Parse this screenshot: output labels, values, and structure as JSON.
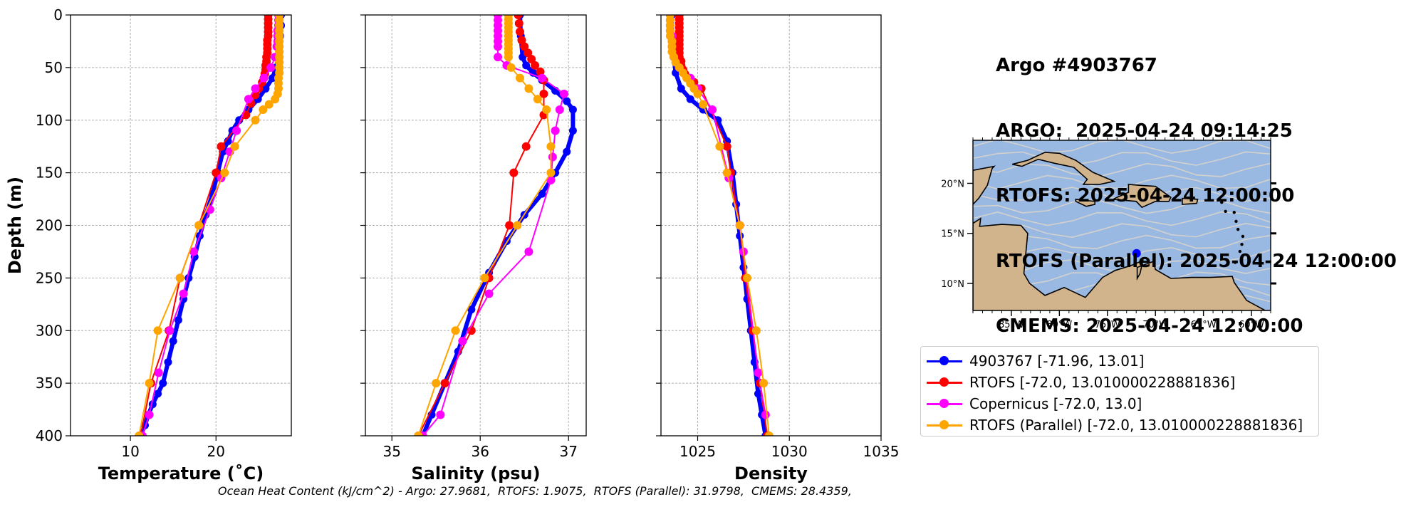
{
  "title_lines": [
    "Argo #4903767",
    "ARGO:  2025-04-24 09:14:25",
    "RTOFS: 2025-04-24 12:00:00",
    "RTOFS (Parallel): 2025-04-24 12:00:00",
    "CMEMS: 2025-04-24 12:00:00"
  ],
  "footer_note": "Ocean Heat Content (kJ/cm^2) - Argo: 27.9681,  RTOFS: 1.9075,  RTOFS (Parallel): 31.9798,  CMEMS: 28.4359,",
  "colors": {
    "argo": "#0000ff",
    "rtofs": "#ff0000",
    "copernicus": "#ff00ff",
    "rtofs_parallel": "#ffa500",
    "ocean": "#9ab9e2",
    "land": "#d2b48c",
    "streamlines": "#d9d4cc"
  },
  "legend": [
    {
      "label": "4903767 [-71.96, 13.01]",
      "color": "#0000ff"
    },
    {
      "label": "RTOFS [-72.0, 13.010000228881836]",
      "color": "#ff0000"
    },
    {
      "label": "Copernicus [-72.0, 13.0]",
      "color": "#ff00ff"
    },
    {
      "label": "RTOFS (Parallel) [-72.0, 13.010000228881836]",
      "color": "#ffa500"
    }
  ],
  "chart_data": [
    {
      "type": "line",
      "xlabel": "Temperature (˚C)",
      "ylabel": "Depth (m)",
      "xlim": [
        3,
        28.8
      ],
      "ylim": [
        400,
        0
      ],
      "xticks": [
        10,
        20
      ],
      "yticks": [
        0,
        50,
        100,
        150,
        200,
        250,
        300,
        350,
        400
      ],
      "grid": true,
      "series": [
        {
          "key": "argo",
          "color": "#0000ff",
          "width": 6,
          "marker": 0,
          "x": [
            27.6,
            27.6,
            27.5,
            27.4,
            27.3,
            27.0,
            26.6,
            25.8,
            24.9,
            23.8,
            22.7,
            21.9,
            21.4,
            20.8,
            20.2,
            19.6,
            18.8,
            18.1,
            17.5,
            16.8,
            16.2,
            15.6,
            15.0,
            14.4,
            13.8,
            13.2,
            12.6,
            12.1,
            11.7,
            11.2
          ],
          "y": [
            0,
            10,
            20,
            30,
            40,
            50,
            60,
            70,
            80,
            90,
            100,
            110,
            120,
            130,
            150,
            170,
            190,
            210,
            230,
            250,
            270,
            290,
            310,
            330,
            350,
            360,
            370,
            380,
            390,
            400
          ]
        },
        {
          "key": "rtofs",
          "color": "#ff0000",
          "width": 2,
          "marker": 6,
          "x": [
            26.1,
            26.1,
            26.1,
            26.1,
            26.1,
            26.1,
            26.0,
            26.0,
            26.0,
            26.0,
            25.9,
            25.9,
            25.8,
            25.8,
            25.7,
            25.6,
            25.4,
            25.0,
            24.6,
            24.1,
            23.5,
            20.6,
            20.0,
            18.0,
            15.8,
            14.5,
            12.4,
            11.2
          ],
          "y": [
            0,
            4,
            8,
            12,
            16,
            20,
            24,
            28,
            32,
            36,
            40,
            44,
            48,
            52,
            56,
            60,
            64,
            70,
            76,
            84,
            95,
            125,
            150,
            200,
            250,
            300,
            350,
            400
          ]
        },
        {
          "key": "copernicus",
          "color": "#ff00ff",
          "width": 2,
          "marker": 6,
          "x": [
            27.3,
            27.3,
            27.3,
            27.2,
            27.2,
            27.2,
            27.1,
            26.9,
            26.4,
            25.6,
            24.6,
            23.8,
            22.4,
            21.6,
            20.6,
            19.3,
            17.4,
            16.2,
            14.6,
            13.3,
            12.2,
            11.4
          ],
          "y": [
            0,
            5,
            10,
            15,
            20,
            25,
            30,
            40,
            50,
            60,
            70,
            80,
            110,
            130,
            155,
            185,
            225,
            265,
            300,
            340,
            380,
            400
          ]
        },
        {
          "key": "rtofs_parallel",
          "color": "#ffa500",
          "width": 2,
          "marker": 6,
          "x": [
            27.4,
            27.4,
            27.4,
            27.4,
            27.4,
            27.4,
            27.4,
            27.4,
            27.4,
            27.4,
            27.4,
            27.4,
            27.3,
            27.3,
            27.3,
            27.2,
            26.9,
            26.2,
            25.5,
            24.6,
            22.2,
            21.0,
            18.0,
            15.8,
            13.2,
            12.2,
            11.0
          ],
          "y": [
            0,
            5,
            10,
            15,
            20,
            25,
            30,
            35,
            40,
            45,
            50,
            55,
            60,
            65,
            70,
            75,
            80,
            85,
            90,
            100,
            125,
            150,
            200,
            250,
            300,
            350,
            400
          ]
        }
      ]
    },
    {
      "type": "line",
      "xlabel": "Salinity (psu)",
      "ylabel": "",
      "xlim": [
        34.7,
        37.2
      ],
      "ylim": [
        400,
        0
      ],
      "xticks": [
        35,
        36,
        37
      ],
      "yticks": [
        0,
        50,
        100,
        150,
        200,
        250,
        300,
        350,
        400
      ],
      "grid": true,
      "series": [
        {
          "key": "argo",
          "color": "#0000ff",
          "width": 6,
          "marker": 0,
          "x": [
            36.45,
            36.46,
            36.48,
            36.52,
            36.6,
            36.7,
            36.85,
            36.98,
            37.05,
            37.05,
            36.98,
            36.85,
            36.7,
            36.5,
            36.3,
            36.1,
            35.9,
            35.75,
            35.6,
            35.45,
            35.35
          ],
          "y": [
            0,
            20,
            40,
            48,
            55,
            62,
            72,
            82,
            90,
            110,
            130,
            150,
            170,
            190,
            215,
            245,
            280,
            320,
            350,
            380,
            400
          ]
        },
        {
          "key": "rtofs",
          "color": "#ff0000",
          "width": 2,
          "marker": 6,
          "x": [
            36.43,
            36.44,
            36.45,
            36.47,
            36.5,
            36.54,
            36.58,
            36.62,
            36.68,
            36.72,
            36.72,
            36.72,
            36.52,
            36.38,
            36.33,
            36.1,
            35.9,
            35.6,
            35.3
          ],
          "y": [
            0,
            8,
            16,
            24,
            30,
            36,
            42,
            48,
            54,
            62,
            75,
            95,
            125,
            150,
            200,
            250,
            300,
            350,
            400
          ]
        },
        {
          "key": "copernicus",
          "color": "#ff00ff",
          "width": 2,
          "marker": 6,
          "x": [
            36.2,
            36.2,
            36.2,
            36.2,
            36.2,
            36.2,
            36.2,
            36.2,
            36.3,
            36.7,
            36.95,
            36.9,
            36.85,
            36.82,
            36.8,
            36.55,
            36.1,
            35.8,
            35.55,
            35.35
          ],
          "y": [
            0,
            5,
            10,
            15,
            20,
            25,
            30,
            40,
            48,
            60,
            75,
            90,
            110,
            135,
            157,
            225,
            265,
            310,
            380,
            400
          ]
        },
        {
          "key": "rtofs_parallel",
          "color": "#ffa500",
          "width": 2,
          "marker": 6,
          "x": [
            36.32,
            36.32,
            36.32,
            36.32,
            36.32,
            36.32,
            36.32,
            36.32,
            36.32,
            36.32,
            36.32,
            36.35,
            36.45,
            36.55,
            36.65,
            36.75,
            36.8,
            36.8,
            36.42,
            36.05,
            35.72,
            35.5,
            35.3
          ],
          "y": [
            0,
            4,
            8,
            12,
            16,
            20,
            24,
            28,
            32,
            36,
            40,
            50,
            60,
            70,
            80,
            90,
            125,
            150,
            200,
            250,
            300,
            350,
            400
          ]
        }
      ]
    },
    {
      "type": "line",
      "xlabel": "Density",
      "ylabel": "",
      "xlim": [
        1023,
        1035
      ],
      "ylim": [
        400,
        0
      ],
      "xticks": [
        1025,
        1030,
        1035
      ],
      "yticks": [
        0,
        50,
        100,
        150,
        200,
        250,
        300,
        350,
        400
      ],
      "grid": true,
      "series": [
        {
          "key": "argo",
          "color": "#0000ff",
          "width": 6,
          "marker": 0,
          "x": [
            1023.6,
            1023.6,
            1023.7,
            1023.8,
            1024.1,
            1024.6,
            1025.3,
            1026.1,
            1026.6,
            1026.9,
            1027.1,
            1027.3,
            1027.5,
            1027.7,
            1027.9,
            1028.1,
            1028.3,
            1028.5,
            1028.7
          ],
          "y": [
            0,
            20,
            40,
            55,
            70,
            80,
            90,
            100,
            120,
            150,
            180,
            210,
            240,
            270,
            300,
            330,
            360,
            380,
            400
          ]
        },
        {
          "key": "rtofs",
          "color": "#ff0000",
          "width": 2,
          "marker": 6,
          "x": [
            1024.0,
            1024.0,
            1024.0,
            1024.0,
            1024.0,
            1024.0,
            1024.0,
            1024.0,
            1024.0,
            1024.0,
            1024.0,
            1024.1,
            1024.1,
            1024.2,
            1024.3,
            1024.5,
            1024.8,
            1025.2,
            1026.6,
            1026.8,
            1027.3,
            1027.6,
            1028.0,
            1028.4,
            1028.8
          ],
          "y": [
            0,
            4,
            8,
            12,
            16,
            20,
            24,
            28,
            32,
            36,
            40,
            44,
            48,
            52,
            56,
            60,
            64,
            70,
            125,
            150,
            200,
            250,
            300,
            350,
            400
          ]
        },
        {
          "key": "copernicus",
          "color": "#ff00ff",
          "width": 2,
          "marker": 6,
          "x": [
            1023.5,
            1023.5,
            1023.5,
            1023.5,
            1023.6,
            1023.6,
            1023.6,
            1023.7,
            1024.0,
            1024.6,
            1025.0,
            1025.8,
            1026.7,
            1027.3,
            1027.5,
            1028.3,
            1028.7
          ],
          "y": [
            0,
            5,
            10,
            15,
            20,
            25,
            30,
            40,
            50,
            60,
            70,
            90,
            155,
            200,
            225,
            340,
            380
          ]
        },
        {
          "key": "rtofs_parallel",
          "color": "#ffa500",
          "width": 2,
          "marker": 6,
          "x": [
            1023.5,
            1023.5,
            1023.5,
            1023.5,
            1023.5,
            1023.6,
            1023.6,
            1023.6,
            1023.7,
            1023.8,
            1024.0,
            1024.2,
            1024.4,
            1024.6,
            1024.8,
            1025.0,
            1025.3,
            1026.2,
            1026.6,
            1027.3,
            1027.7,
            1028.2,
            1028.6,
            1028.9
          ],
          "y": [
            0,
            5,
            10,
            15,
            20,
            25,
            30,
            35,
            40,
            45,
            50,
            55,
            60,
            65,
            70,
            75,
            85,
            125,
            150,
            200,
            250,
            300,
            350,
            400
          ]
        }
      ]
    }
  ],
  "map": {
    "lon_range": [
      -89,
      -58
    ],
    "lat_range": [
      7.3,
      24.3
    ],
    "lon_ticks": [
      -85,
      -80,
      -75,
      -70,
      -65,
      -60
    ],
    "lon_labels": [
      "85°W",
      "80°W",
      "75°W",
      "70°W",
      "65°W",
      "60°W"
    ],
    "lat_ticks": [
      10,
      15,
      20
    ],
    "lat_labels": [
      "10°N",
      "15°N",
      "20°N"
    ],
    "marker": {
      "lon": -71.96,
      "lat": 13.01
    }
  }
}
